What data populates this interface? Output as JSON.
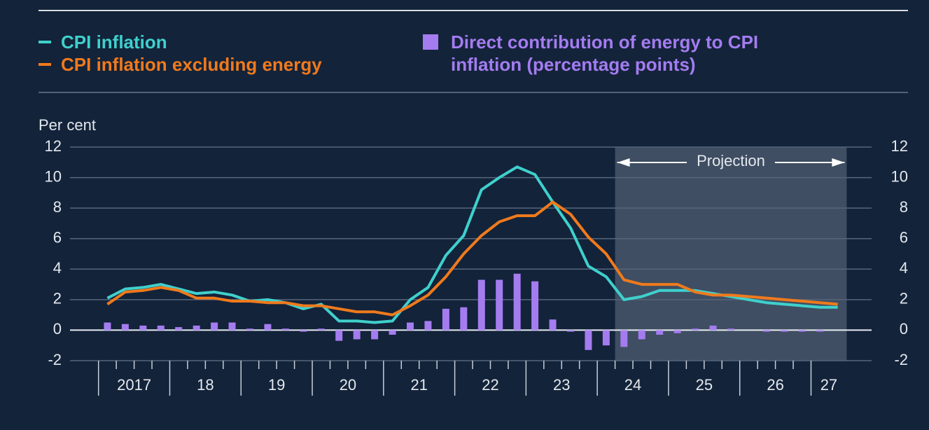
{
  "chart_data": {
    "type": "line",
    "ylabel": "Per cent",
    "x": [
      2017.125,
      2017.375,
      2017.625,
      2017.875,
      2018.125,
      2018.375,
      2018.625,
      2018.875,
      2019.125,
      2019.375,
      2019.625,
      2019.875,
      2020.125,
      2020.375,
      2020.625,
      2020.875,
      2021.125,
      2021.375,
      2021.625,
      2021.875,
      2022.125,
      2022.375,
      2022.625,
      2022.875,
      2023.125,
      2023.375,
      2023.625,
      2023.875,
      2024.125,
      2024.375,
      2024.625,
      2024.875,
      2025.125,
      2025.375,
      2025.625,
      2025.875,
      2026.125,
      2026.375,
      2026.625,
      2026.875,
      2027.125,
      2027.375
    ],
    "series": [
      {
        "name": "Direct contribution of energy to CPI inflation (percentage points)",
        "type": "bar",
        "color": "#a47cf0",
        "values": [
          0.5,
          0.4,
          0.3,
          0.3,
          0.2,
          0.3,
          0.5,
          0.5,
          0.1,
          0.4,
          0.1,
          -0.1,
          0.1,
          -0.7,
          -0.6,
          -0.6,
          -0.3,
          0.5,
          0.6,
          1.4,
          1.5,
          3.3,
          3.3,
          3.7,
          3.2,
          0.7,
          -0.1,
          -1.3,
          -1.0,
          -1.1,
          -0.6,
          -0.3,
          -0.2,
          0.1,
          0.3,
          0.1,
          0.0,
          -0.1,
          -0.1,
          -0.1,
          -0.1,
          0.0
        ]
      },
      {
        "name": "CPI inflation",
        "type": "line",
        "color": "#3fd0cc",
        "values": [
          2.1,
          2.7,
          2.8,
          3.0,
          2.7,
          2.4,
          2.5,
          2.3,
          1.9,
          2.0,
          1.8,
          1.4,
          1.7,
          0.6,
          0.6,
          0.5,
          0.6,
          2.0,
          2.8,
          4.9,
          6.2,
          9.2,
          10.0,
          10.7,
          10.2,
          8.4,
          6.7,
          4.2,
          3.5,
          2.0,
          2.2,
          2.6,
          2.6,
          2.6,
          2.4,
          2.2,
          2.0,
          1.8,
          1.7,
          1.6,
          1.5,
          1.5
        ]
      },
      {
        "name": "CPI inflation excluding energy",
        "type": "line",
        "color": "#f07a1c",
        "values": [
          1.7,
          2.5,
          2.6,
          2.8,
          2.6,
          2.1,
          2.1,
          1.9,
          1.9,
          1.8,
          1.8,
          1.6,
          1.6,
          1.4,
          1.2,
          1.2,
          1.0,
          1.6,
          2.3,
          3.5,
          5.0,
          6.2,
          7.1,
          7.5,
          7.5,
          8.4,
          7.6,
          6.1,
          5.0,
          3.3,
          3.0,
          3.0,
          3.0,
          2.5,
          2.3,
          2.3,
          2.2,
          2.1,
          2.0,
          1.9,
          1.8,
          1.7
        ]
      }
    ],
    "xlim": [
      2016.6,
      2027.85
    ],
    "xticks": [
      {
        "value": 2017.5,
        "label": "2017"
      },
      {
        "value": 2018.5,
        "label": "18"
      },
      {
        "value": 2019.5,
        "label": "19"
      },
      {
        "value": 2020.5,
        "label": "20"
      },
      {
        "value": 2021.5,
        "label": "21"
      },
      {
        "value": 2022.5,
        "label": "22"
      },
      {
        "value": 2023.5,
        "label": "23"
      },
      {
        "value": 2024.5,
        "label": "24"
      },
      {
        "value": 2025.5,
        "label": "25"
      },
      {
        "value": 2026.5,
        "label": "26"
      },
      {
        "value": 2027.25,
        "label": "27"
      }
    ],
    "xmajor": [
      2017,
      2018,
      2019,
      2020,
      2021,
      2022,
      2023,
      2024,
      2025,
      2026,
      2027
    ],
    "xminor": [
      2017.25,
      2017.5,
      2017.75,
      2018.25,
      2018.5,
      2018.75,
      2019.25,
      2019.5,
      2019.75,
      2020.25,
      2020.5,
      2020.75,
      2021.25,
      2021.5,
      2021.75,
      2022.25,
      2022.5,
      2022.75,
      2023.25,
      2023.5,
      2023.75,
      2024.25,
      2024.5,
      2024.75,
      2025.25,
      2025.5,
      2025.75,
      2026.25,
      2026.5,
      2026.75
    ],
    "ylim": [
      -2,
      12
    ],
    "yticks": [
      -2,
      0,
      2,
      4,
      6,
      8,
      10,
      12
    ],
    "grid": true,
    "projection": {
      "label": "Projection",
      "range": [
        2024.25,
        2027.5
      ]
    }
  }
}
